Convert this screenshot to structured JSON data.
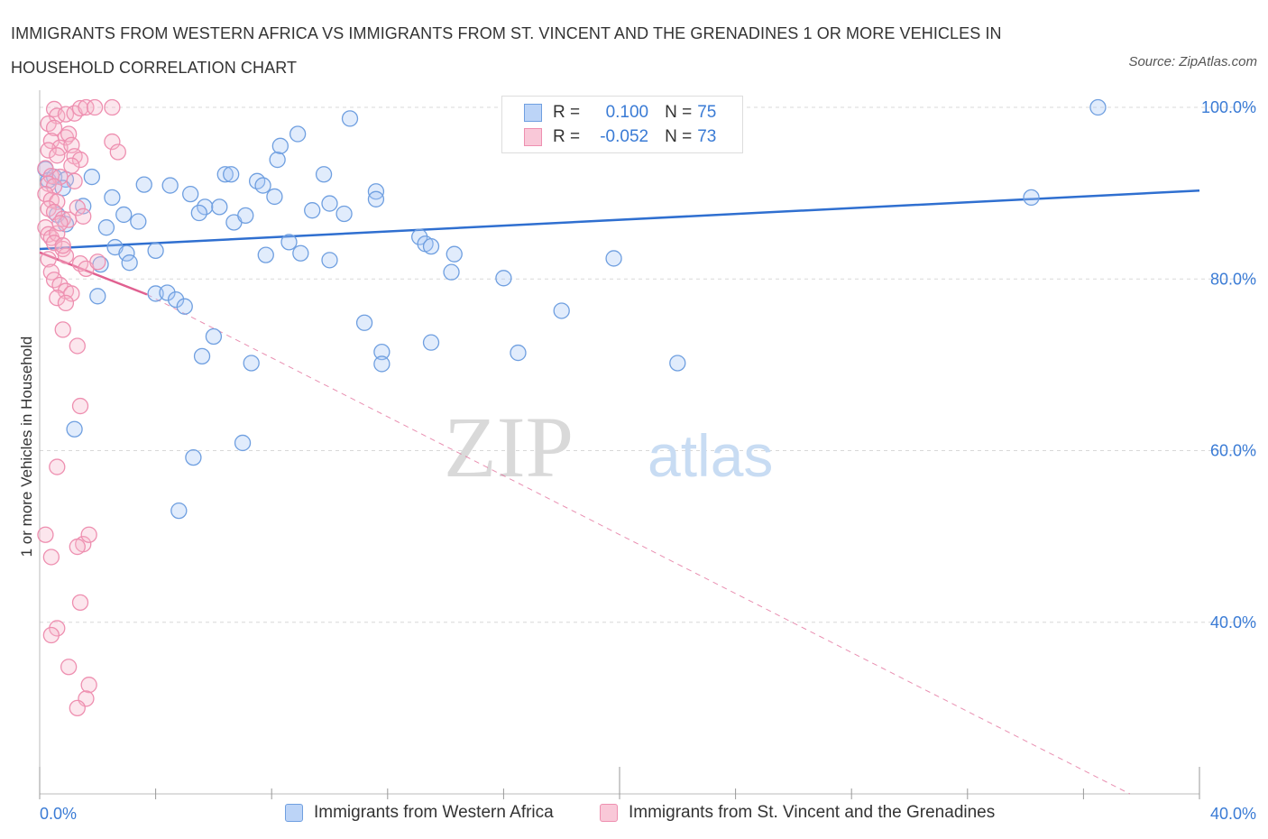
{
  "title": "IMMIGRANTS FROM WESTERN AFRICA VS IMMIGRANTS FROM ST. VINCENT AND THE GRENADINES 1 OR MORE VEHICLES IN HOUSEHOLD CORRELATION CHART",
  "source": "Source: ZipAtlas.com",
  "watermark": {
    "part1": "ZIP",
    "part2": "atlas"
  },
  "legend_top": {
    "rows": [
      {
        "swatch_color": "#a8c8f5",
        "r_label": "R =",
        "r_value": "0.100",
        "n_label": "N =",
        "n_value": "75"
      },
      {
        "swatch_color": "#f7b6cb",
        "r_label": "R =",
        "r_value": "-0.052",
        "n_label": "N =",
        "n_value": "73"
      }
    ]
  },
  "legend_bottom": [
    {
      "label": "Immigrants from Western Africa",
      "color": "#a8c8f5"
    },
    {
      "label": "Immigrants from St. Vincent and the Grenadines",
      "color": "#f7b6cb"
    }
  ],
  "chart_data": {
    "type": "scatter",
    "title": "IMMIGRANTS FROM WESTERN AFRICA VS IMMIGRANTS FROM ST. VINCENT AND THE GRENADINES 1 OR MORE VEHICLES IN HOUSEHOLD CORRELATION CHART",
    "xlabel": "",
    "ylabel": "1 or more Vehicles in Household",
    "xlim": [
      0,
      40
    ],
    "ylim": [
      20,
      102
    ],
    "x_tick_labels": [
      "0.0%",
      "40.0%"
    ],
    "y_tick_labels": [
      "100.0%",
      "80.0%",
      "60.0%",
      "40.0%"
    ],
    "y_ticks": [
      100,
      80,
      60,
      40
    ],
    "grid": true,
    "legend_position": "top-center",
    "colors": {
      "blue": "#6f9fe0",
      "blue_line": "#2f6fd0",
      "pink": "#ee8fb0",
      "pink_line": "#e06090",
      "tick_text": "#3a7bd5"
    },
    "series": [
      {
        "name": "Immigrants from Western Africa",
        "color": "blue",
        "points": [
          [
            0.2,
            92.8
          ],
          [
            0.3,
            91.5
          ],
          [
            0.5,
            91.9
          ],
          [
            0.9,
            91.6
          ],
          [
            0.8,
            90.6
          ],
          [
            0.6,
            87.5
          ],
          [
            0.9,
            86.4
          ],
          [
            1.5,
            88.5
          ],
          [
            1.8,
            91.9
          ],
          [
            2.5,
            89.5
          ],
          [
            2.3,
            86.0
          ],
          [
            2.9,
            87.5
          ],
          [
            3.4,
            86.7
          ],
          [
            2.6,
            83.7
          ],
          [
            3.0,
            83.0
          ],
          [
            3.1,
            81.9
          ],
          [
            2.1,
            81.7
          ],
          [
            4.0,
            83.3
          ],
          [
            3.6,
            91.0
          ],
          [
            4.5,
            90.9
          ],
          [
            5.2,
            89.9
          ],
          [
            5.7,
            88.4
          ],
          [
            5.5,
            87.7
          ],
          [
            6.2,
            88.4
          ],
          [
            6.7,
            86.6
          ],
          [
            7.1,
            87.4
          ],
          [
            6.4,
            92.2
          ],
          [
            6.6,
            92.2
          ],
          [
            7.5,
            91.4
          ],
          [
            7.7,
            90.9
          ],
          [
            8.1,
            89.6
          ],
          [
            8.2,
            93.9
          ],
          [
            8.3,
            95.5
          ],
          [
            8.9,
            96.9
          ],
          [
            9.4,
            88.0
          ],
          [
            9.8,
            92.2
          ],
          [
            10.0,
            88.8
          ],
          [
            10.5,
            87.6
          ],
          [
            10.7,
            98.7
          ],
          [
            11.6,
            90.2
          ],
          [
            11.6,
            89.3
          ],
          [
            13.1,
            84.9
          ],
          [
            13.3,
            84.1
          ],
          [
            13.5,
            83.8
          ],
          [
            14.3,
            82.9
          ],
          [
            14.2,
            80.8
          ],
          [
            8.6,
            84.3
          ],
          [
            9.0,
            83.0
          ],
          [
            7.8,
            82.8
          ],
          [
            10.0,
            82.2
          ],
          [
            4.0,
            78.3
          ],
          [
            4.4,
            78.4
          ],
          [
            4.7,
            77.6
          ],
          [
            5.0,
            76.8
          ],
          [
            2.0,
            78.0
          ],
          [
            5.6,
            71.0
          ],
          [
            6.0,
            73.3
          ],
          [
            7.3,
            70.2
          ],
          [
            11.2,
            74.9
          ],
          [
            11.8,
            71.5
          ],
          [
            11.8,
            70.1
          ],
          [
            13.5,
            72.6
          ],
          [
            16.0,
            80.1
          ],
          [
            16.5,
            71.4
          ],
          [
            17.0,
            98.9
          ],
          [
            18.5,
            100.0
          ],
          [
            18.0,
            76.3
          ],
          [
            19.8,
            82.4
          ],
          [
            22.0,
            70.2
          ],
          [
            34.2,
            89.5
          ],
          [
            36.5,
            100.0
          ],
          [
            1.2,
            62.5
          ],
          [
            5.3,
            59.2
          ],
          [
            7.0,
            60.9
          ],
          [
            4.8,
            53.0
          ]
        ]
      },
      {
        "name": "Immigrants from St. Vincent and the Grenadines",
        "color": "pink",
        "points": [
          [
            0.5,
            99.8
          ],
          [
            0.6,
            99.0
          ],
          [
            0.9,
            99.2
          ],
          [
            1.2,
            99.3
          ],
          [
            1.4,
            99.9
          ],
          [
            1.6,
            100.0
          ],
          [
            2.5,
            100.0
          ],
          [
            0.3,
            98.1
          ],
          [
            0.5,
            97.6
          ],
          [
            0.9,
            96.5
          ],
          [
            1.0,
            96.9
          ],
          [
            0.4,
            96.1
          ],
          [
            0.7,
            95.3
          ],
          [
            1.1,
            95.6
          ],
          [
            0.3,
            95.0
          ],
          [
            0.6,
            94.4
          ],
          [
            1.2,
            94.3
          ],
          [
            1.4,
            93.9
          ],
          [
            2.5,
            96.0
          ],
          [
            2.7,
            94.8
          ],
          [
            0.2,
            92.9
          ],
          [
            0.4,
            92.0
          ],
          [
            0.7,
            91.9
          ],
          [
            0.3,
            91.1
          ],
          [
            0.5,
            90.8
          ],
          [
            0.2,
            89.9
          ],
          [
            0.4,
            89.2
          ],
          [
            0.6,
            89.0
          ],
          [
            0.3,
            88.2
          ],
          [
            0.5,
            87.8
          ],
          [
            0.8,
            87.0
          ],
          [
            1.0,
            86.9
          ],
          [
            1.3,
            88.3
          ],
          [
            1.5,
            87.3
          ],
          [
            0.2,
            86.0
          ],
          [
            0.3,
            85.2
          ],
          [
            0.4,
            84.8
          ],
          [
            0.6,
            85.3
          ],
          [
            0.5,
            84.2
          ],
          [
            0.8,
            83.5
          ],
          [
            0.9,
            82.7
          ],
          [
            1.4,
            81.8
          ],
          [
            1.6,
            81.2
          ],
          [
            2.0,
            82.0
          ],
          [
            0.3,
            82.3
          ],
          [
            0.4,
            80.8
          ],
          [
            0.5,
            79.9
          ],
          [
            0.7,
            79.3
          ],
          [
            0.9,
            78.6
          ],
          [
            1.1,
            78.3
          ],
          [
            0.6,
            77.8
          ],
          [
            0.9,
            77.2
          ],
          [
            0.8,
            74.1
          ],
          [
            1.3,
            72.2
          ],
          [
            1.4,
            65.2
          ],
          [
            0.6,
            58.1
          ],
          [
            0.2,
            50.2
          ],
          [
            1.5,
            49.1
          ],
          [
            1.3,
            48.8
          ],
          [
            0.4,
            47.6
          ],
          [
            1.7,
            50.2
          ],
          [
            1.4,
            42.3
          ],
          [
            0.6,
            39.3
          ],
          [
            0.4,
            38.5
          ],
          [
            1.0,
            34.8
          ],
          [
            1.7,
            32.7
          ],
          [
            1.6,
            31.1
          ],
          [
            1.3,
            30.0
          ],
          [
            1.9,
            100.0
          ],
          [
            1.1,
            93.2
          ],
          [
            1.2,
            91.4
          ],
          [
            0.7,
            86.5
          ],
          [
            0.8,
            83.9
          ]
        ]
      }
    ],
    "trend_lines": [
      {
        "series": "Immigrants from Western Africa",
        "x": [
          0,
          40
        ],
        "y": [
          83.5,
          90.3
        ],
        "style": "solid"
      },
      {
        "series": "Immigrants from St. Vincent and the Grenadines",
        "x": [
          0,
          3.7
        ],
        "y": [
          83.1,
          78.2
        ],
        "style": "solid"
      },
      {
        "series": "Immigrants from St. Vincent and the Grenadines",
        "x": [
          3.7,
          37.6
        ],
        "y": [
          78.2,
          20.0
        ],
        "style": "dashed"
      }
    ]
  }
}
